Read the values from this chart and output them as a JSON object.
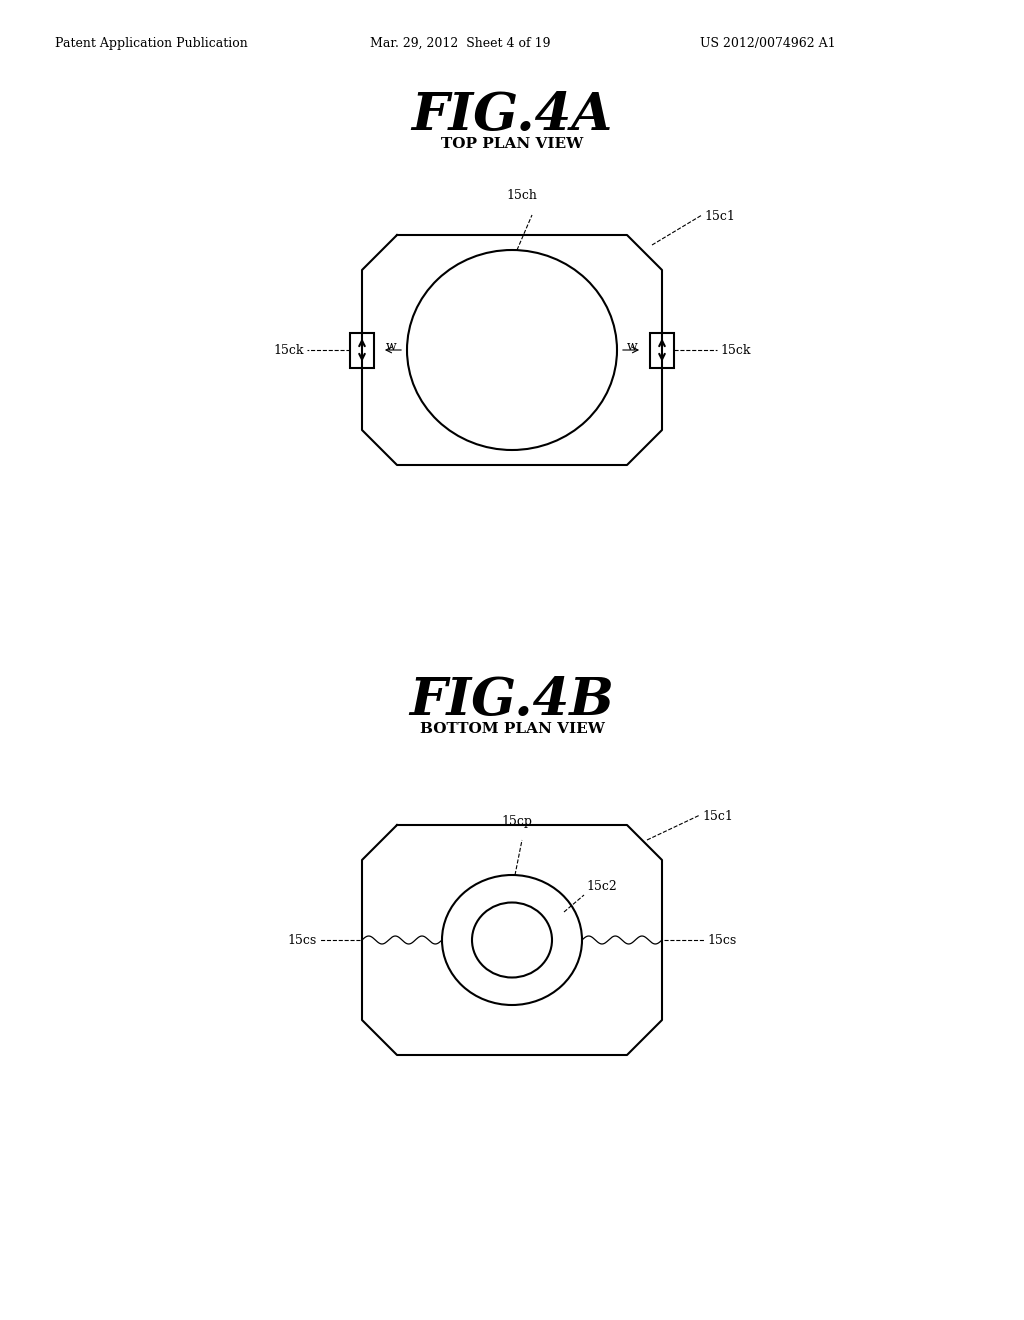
{
  "bg_color": "#ffffff",
  "header_left": "Patent Application Publication",
  "header_mid": "Mar. 29, 2012  Sheet 4 of 19",
  "header_right": "US 2012/0074962 A1",
  "fig4a_title": "FIG.4A",
  "fig4a_sub": "TOP PLAN VIEW",
  "fig4b_title": "FIG.4B",
  "fig4b_sub": "BOTTOM PLAN VIEW",
  "label_15ch": "15ch",
  "label_15c1_top": "15c1",
  "label_15ck_left": "15ck",
  "label_15ck_right": "15ck",
  "label_w_left": "w",
  "label_w_right": "w",
  "label_15cp": "15cp",
  "label_15c1_bot": "15c1",
  "label_15c2": "15c2",
  "label_15cs_left": "15cs",
  "label_15cs_right": "15cs",
  "line_color": "#000000",
  "line_width": 1.5
}
